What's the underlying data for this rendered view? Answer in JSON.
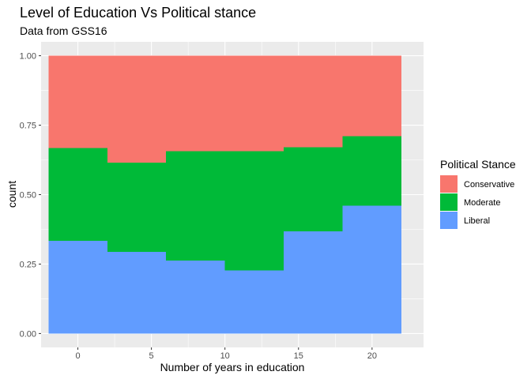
{
  "chart_data": {
    "type": "bar",
    "position": "fill",
    "title": "Level of Education Vs Political stance",
    "subtitle": "Data from GSS16",
    "xlabel": "Number of years in education",
    "ylabel": "count",
    "xlim": [
      -2.5,
      23.5
    ],
    "ylim": [
      -0.05,
      1.05
    ],
    "x_ticks": [
      0,
      5,
      10,
      15,
      20
    ],
    "y_ticks": [
      0.0,
      0.25,
      0.5,
      0.75,
      1.0
    ],
    "y_tick_labels": [
      "0.00",
      "0.25",
      "0.50",
      "0.75",
      "1.00"
    ],
    "bins": [
      {
        "x0": -2,
        "x1": 2
      },
      {
        "x0": 2,
        "x1": 6
      },
      {
        "x0": 6,
        "x1": 10
      },
      {
        "x0": 10,
        "x1": 14
      },
      {
        "x0": 14,
        "x1": 18
      },
      {
        "x0": 18,
        "x1": 22
      }
    ],
    "legend_title": "Political Stance",
    "legend_position": "right",
    "series": [
      {
        "name": "Conservative",
        "color": "#F8766D",
        "values": [
          0.333,
          0.385,
          0.344,
          0.343,
          0.329,
          0.289
        ]
      },
      {
        "name": "Moderate",
        "color": "#00BA38",
        "values": [
          0.333,
          0.321,
          0.394,
          0.43,
          0.303,
          0.251
        ]
      },
      {
        "name": "Liberal",
        "color": "#619CFF",
        "values": [
          0.334,
          0.294,
          0.262,
          0.227,
          0.368,
          0.46
        ]
      }
    ],
    "grid": true,
    "panel_color": "#EBEBEB"
  }
}
